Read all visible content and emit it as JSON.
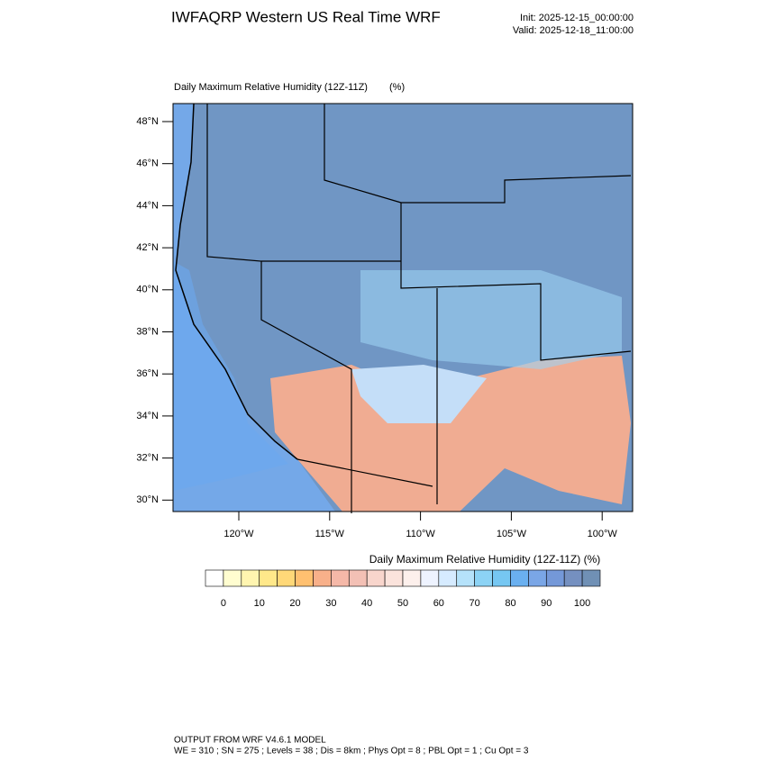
{
  "header": {
    "title": "IWFAQRP Western US Real Time WRF",
    "init": "Init: 2025-12-15_00:00:00",
    "valid": "Valid: 2025-12-18_11:00:00"
  },
  "map": {
    "title": "Daily Maximum Relative Humidity (12Z-11Z)",
    "units": "(%)",
    "lat_labels": [
      "48°N",
      "46°N",
      "44°N",
      "42°N",
      "40°N",
      "38°N",
      "36°N",
      "34°N",
      "32°N",
      "30°N"
    ],
    "lon_labels": [
      "120°W",
      "115°W",
      "110°W",
      "105°W",
      "100°W"
    ]
  },
  "colorbar": {
    "title": "Daily Maximum Relative Humidity (12Z-11Z)  (%)",
    "ticks": [
      0,
      10,
      20,
      30,
      40,
      50,
      60,
      70,
      80,
      90,
      100
    ],
    "colors": [
      "#ffffff",
      "#fffdd0",
      "#fff5b0",
      "#ffe88a",
      "#ffd878",
      "#ffc070",
      "#f8b08a",
      "#f5b8a8",
      "#f3c0b5",
      "#f8d5cc",
      "#fbe3dc",
      "#fdf0ec",
      "#eef3ff",
      "#d6ebff",
      "#b5e2fa",
      "#8cd3f5",
      "#76c7f2",
      "#6ab0f0",
      "#7aa6e6",
      "#7498d8",
      "#7590c0",
      "#7090b5"
    ]
  },
  "footer": {
    "line1": "OUTPUT FROM WRF V4.6.1 MODEL",
    "line2": "WE = 310 ; SN = 275 ; Levels = 38 ; Dis = 8km ; Phys Opt = 8 ; PBL Opt = 1 ; Cu Opt = 3"
  }
}
